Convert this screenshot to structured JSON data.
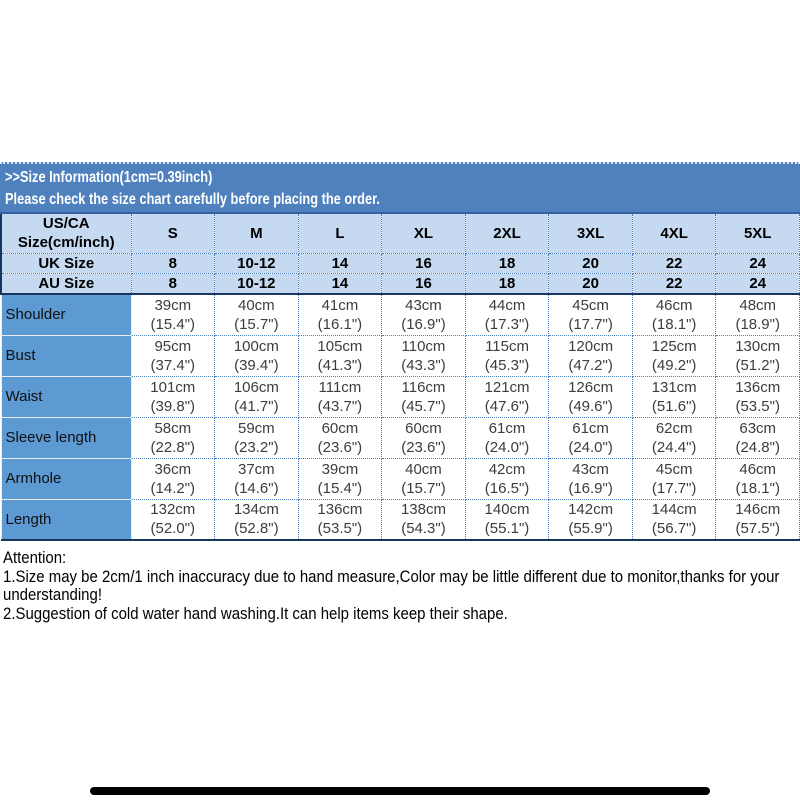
{
  "banner": {
    "line1": ">>Size Information(1cm=0.39inch)",
    "line2": "Please check the size chart carefully before placing the order."
  },
  "table": {
    "corner_line1": "US/CA",
    "corner_line2": "Size(cm/inch)",
    "size_headers": [
      "S",
      "M",
      "L",
      "XL",
      "2XL",
      "3XL",
      "4XL",
      "5XL"
    ],
    "uk_label": "UK Size",
    "uk": [
      "8",
      "10-12",
      "14",
      "16",
      "18",
      "20",
      "22",
      "24"
    ],
    "au_label": "AU Size",
    "au": [
      "8",
      "10-12",
      "14",
      "16",
      "18",
      "20",
      "22",
      "24"
    ],
    "rows": [
      {
        "label": "Shoulder",
        "cells": [
          {
            "cm": "39cm",
            "in": "(15.4\")"
          },
          {
            "cm": "40cm",
            "in": "(15.7\")"
          },
          {
            "cm": "41cm",
            "in": "(16.1\")"
          },
          {
            "cm": "43cm",
            "in": "(16.9\")"
          },
          {
            "cm": "44cm",
            "in": "(17.3\")"
          },
          {
            "cm": "45cm",
            "in": "(17.7\")"
          },
          {
            "cm": "46cm",
            "in": "(18.1\")"
          },
          {
            "cm": "48cm",
            "in": "(18.9\")"
          }
        ]
      },
      {
        "label": "Bust",
        "cells": [
          {
            "cm": "95cm",
            "in": "(37.4\")"
          },
          {
            "cm": "100cm",
            "in": "(39.4\")"
          },
          {
            "cm": "105cm",
            "in": "(41.3\")"
          },
          {
            "cm": "110cm",
            "in": "(43.3\")"
          },
          {
            "cm": "115cm",
            "in": "(45.3\")"
          },
          {
            "cm": "120cm",
            "in": "(47.2\")"
          },
          {
            "cm": "125cm",
            "in": "(49.2\")"
          },
          {
            "cm": "130cm",
            "in": "(51.2\")"
          }
        ]
      },
      {
        "label": "Waist",
        "cells": [
          {
            "cm": "101cm",
            "in": "(39.8\")"
          },
          {
            "cm": "106cm",
            "in": "(41.7\")"
          },
          {
            "cm": "111cm",
            "in": "(43.7\")"
          },
          {
            "cm": "116cm",
            "in": "(45.7\")"
          },
          {
            "cm": "121cm",
            "in": "(47.6\")"
          },
          {
            "cm": "126cm",
            "in": "(49.6\")"
          },
          {
            "cm": "131cm",
            "in": "(51.6\")"
          },
          {
            "cm": "136cm",
            "in": "(53.5\")"
          }
        ]
      },
      {
        "label": "Sleeve length",
        "cells": [
          {
            "cm": "58cm",
            "in": "(22.8\")"
          },
          {
            "cm": "59cm",
            "in": "(23.2\")"
          },
          {
            "cm": "60cm",
            "in": "(23.6\")"
          },
          {
            "cm": "60cm",
            "in": "(23.6\")"
          },
          {
            "cm": "61cm",
            "in": "(24.0\")"
          },
          {
            "cm": "61cm",
            "in": "(24.0\")"
          },
          {
            "cm": "62cm",
            "in": "(24.4\")"
          },
          {
            "cm": "63cm",
            "in": "(24.8\")"
          }
        ]
      },
      {
        "label": "Armhole",
        "cells": [
          {
            "cm": "36cm",
            "in": "(14.2\")"
          },
          {
            "cm": "37cm",
            "in": "(14.6\")"
          },
          {
            "cm": "39cm",
            "in": "(15.4\")"
          },
          {
            "cm": "40cm",
            "in": "(15.7\")"
          },
          {
            "cm": "42cm",
            "in": "(16.5\")"
          },
          {
            "cm": "43cm",
            "in": "(16.9\")"
          },
          {
            "cm": "45cm",
            "in": "(17.7\")"
          },
          {
            "cm": "46cm",
            "in": "(18.1\")"
          }
        ]
      },
      {
        "label": "Length",
        "cells": [
          {
            "cm": "132cm",
            "in": "(52.0\")"
          },
          {
            "cm": "134cm",
            "in": "(52.8\")"
          },
          {
            "cm": "136cm",
            "in": "(53.5\")"
          },
          {
            "cm": "138cm",
            "in": "(54.3\")"
          },
          {
            "cm": "140cm",
            "in": "(55.1\")"
          },
          {
            "cm": "142cm",
            "in": "(55.9\")"
          },
          {
            "cm": "144cm",
            "in": "(56.7\")"
          },
          {
            "cm": "146cm",
            "in": "(57.5\")"
          }
        ]
      }
    ]
  },
  "attention": {
    "title": "Attention:",
    "note1": "1.Size may be 2cm/1 inch inaccuracy due to hand measure,Color may be little different due to monitor,thanks for your understanding!",
    "note2": "2.Suggestion of cold water hand washing.It can help items keep their shape."
  },
  "colors": {
    "banner_blue": "#4e81bd",
    "header_row_bg": "#c5d9f1",
    "label_column_bg": "#5d9ad3",
    "dotted_border_blue": "#4a7ebd",
    "dark_border_navy": "#17375e",
    "bottom_bar": "#000000"
  }
}
